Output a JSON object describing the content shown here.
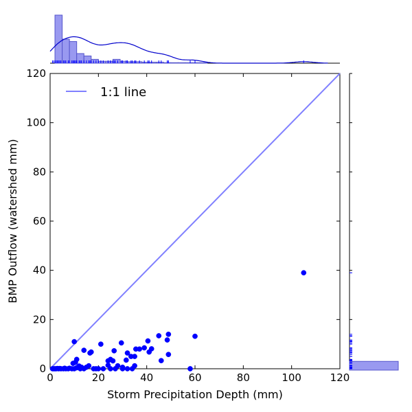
{
  "chart_data": {
    "type": "scatter",
    "xlabel": "Storm Precipitation Depth (mm)",
    "ylabel": "BMP Outflow (watershed mm)",
    "xlim": [
      0,
      120
    ],
    "ylim": [
      0,
      120
    ],
    "x_ticks": [
      "0",
      "20",
      "40",
      "60",
      "80",
      "100",
      "120"
    ],
    "y_ticks": [
      "0",
      "20",
      "40",
      "60",
      "80",
      "100",
      "120"
    ],
    "legend": {
      "label": "1:1 line",
      "placement": "top-left"
    },
    "grid": false,
    "colors": {
      "points": "#0000ff",
      "ref_line": "#8080ff",
      "hist_fill": "#9999f0",
      "hist_edge": "#5555cc",
      "kde": "#0000cc"
    },
    "reference_line": {
      "from": [
        0,
        0
      ],
      "to": [
        120,
        120
      ]
    },
    "points": [
      [
        10,
        11
      ],
      [
        105,
        39
      ],
      [
        60,
        13.2
      ],
      [
        49,
        14
      ],
      [
        45,
        13.4
      ],
      [
        40.5,
        11.3
      ],
      [
        48.5,
        11.7
      ],
      [
        29.5,
        10.5
      ],
      [
        21,
        10
      ],
      [
        14,
        7.5
      ],
      [
        17,
        6.8
      ],
      [
        16.5,
        6.4
      ],
      [
        26.5,
        7.3
      ],
      [
        32,
        6.4
      ],
      [
        33.5,
        5
      ],
      [
        35,
        5
      ],
      [
        35.5,
        8
      ],
      [
        37,
        8
      ],
      [
        39,
        8.5
      ],
      [
        41,
        6.8
      ],
      [
        42,
        8.1
      ],
      [
        49,
        5.8
      ],
      [
        46,
        3.3
      ],
      [
        11,
        3.8
      ],
      [
        10.5,
        2.6
      ],
      [
        9.5,
        2.2
      ],
      [
        25,
        3.8
      ],
      [
        26,
        3.2
      ],
      [
        24,
        3.2
      ],
      [
        31.5,
        3.5
      ],
      [
        28,
        1.2
      ],
      [
        30,
        0.6
      ],
      [
        16,
        1.2
      ],
      [
        15,
        0.6
      ],
      [
        13,
        0.6
      ],
      [
        11,
        0.4
      ],
      [
        35,
        1.2
      ],
      [
        24,
        1.4
      ],
      [
        12,
        1.1
      ],
      [
        8,
        0.2
      ],
      [
        6,
        0.2
      ],
      [
        4,
        0.1
      ],
      [
        3,
        0.1
      ],
      [
        2,
        0
      ],
      [
        1,
        0
      ],
      [
        1.5,
        0
      ],
      [
        2.5,
        0
      ],
      [
        3.5,
        0
      ],
      [
        4.5,
        0
      ],
      [
        5.5,
        0
      ],
      [
        6.5,
        0
      ],
      [
        7.5,
        0
      ],
      [
        9,
        0
      ],
      [
        10,
        0
      ],
      [
        12.5,
        0
      ],
      [
        14,
        0
      ],
      [
        18,
        0
      ],
      [
        19,
        0
      ],
      [
        20,
        0
      ],
      [
        22,
        0
      ],
      [
        25,
        0
      ],
      [
        27,
        0
      ],
      [
        30,
        0
      ],
      [
        32,
        0
      ],
      [
        34,
        0
      ],
      [
        58,
        0
      ]
    ],
    "x_marginal": {
      "bin_edges": [
        2,
        5,
        8,
        11,
        14,
        17,
        20,
        23,
        26,
        29,
        32,
        35,
        38,
        41,
        44,
        47,
        50,
        53,
        56,
        59,
        62,
        65
      ],
      "heights": [
        1.0,
        0.5,
        0.45,
        0.2,
        0.15,
        0.08,
        0.04,
        0.04,
        0.08,
        0.04,
        0.03,
        0.03,
        0.02,
        0.02,
        0.02,
        0.01,
        0.01,
        0.01,
        0.01,
        0.01,
        0.01
      ]
    },
    "y_marginal": {
      "bin_edges": [
        0,
        3
      ],
      "heights": [
        1.0
      ]
    }
  }
}
